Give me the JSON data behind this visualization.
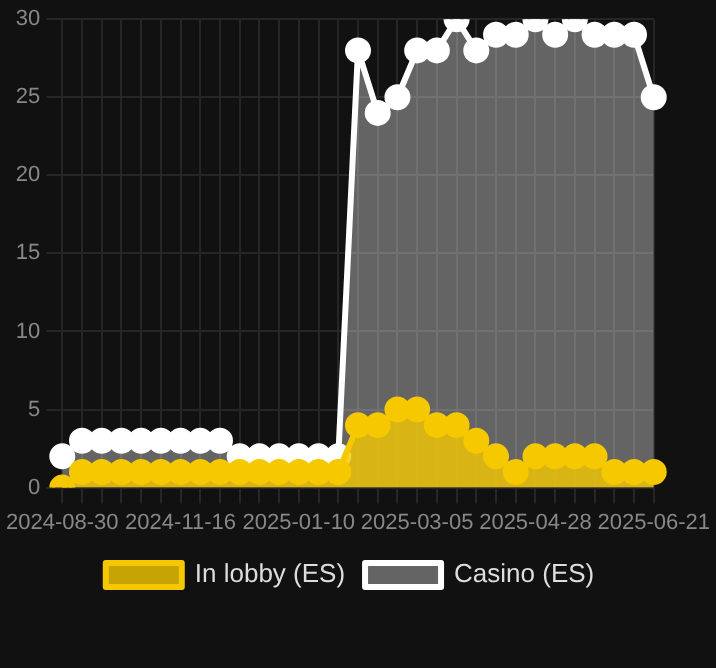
{
  "chart_data": {
    "type": "area",
    "categories": [
      "2024-08-30",
      null,
      null,
      null,
      null,
      null,
      "2024-11-16",
      null,
      null,
      null,
      null,
      null,
      "2025-01-10",
      null,
      null,
      null,
      null,
      null,
      "2025-03-05",
      null,
      null,
      null,
      null,
      null,
      "2025-04-28",
      null,
      null,
      null,
      null,
      null,
      "2025-06-21"
    ],
    "series": [
      {
        "name": "In lobby (ES)",
        "color": "#f5c800",
        "values": [
          0,
          1,
          1,
          1,
          1,
          1,
          1,
          1,
          1,
          1,
          1,
          1,
          1,
          1,
          1,
          4,
          4,
          5,
          5,
          4,
          4,
          3,
          2,
          1,
          2,
          2,
          2,
          2,
          1,
          1,
          1
        ]
      },
      {
        "name": "Casino (ES)",
        "color": "#ffffff",
        "values": [
          2,
          3,
          3,
          3,
          3,
          3,
          3,
          3,
          3,
          2,
          2,
          2,
          2,
          2,
          2,
          28,
          24,
          25,
          28,
          28,
          30,
          28,
          29,
          29,
          30,
          29,
          30,
          29,
          29,
          29,
          25
        ]
      }
    ],
    "ylim": [
      0,
      30
    ],
    "yticks": [
      0,
      5,
      10,
      15,
      20,
      25,
      30
    ],
    "grid": true,
    "legend": "bottom",
    "marker": "circle"
  }
}
